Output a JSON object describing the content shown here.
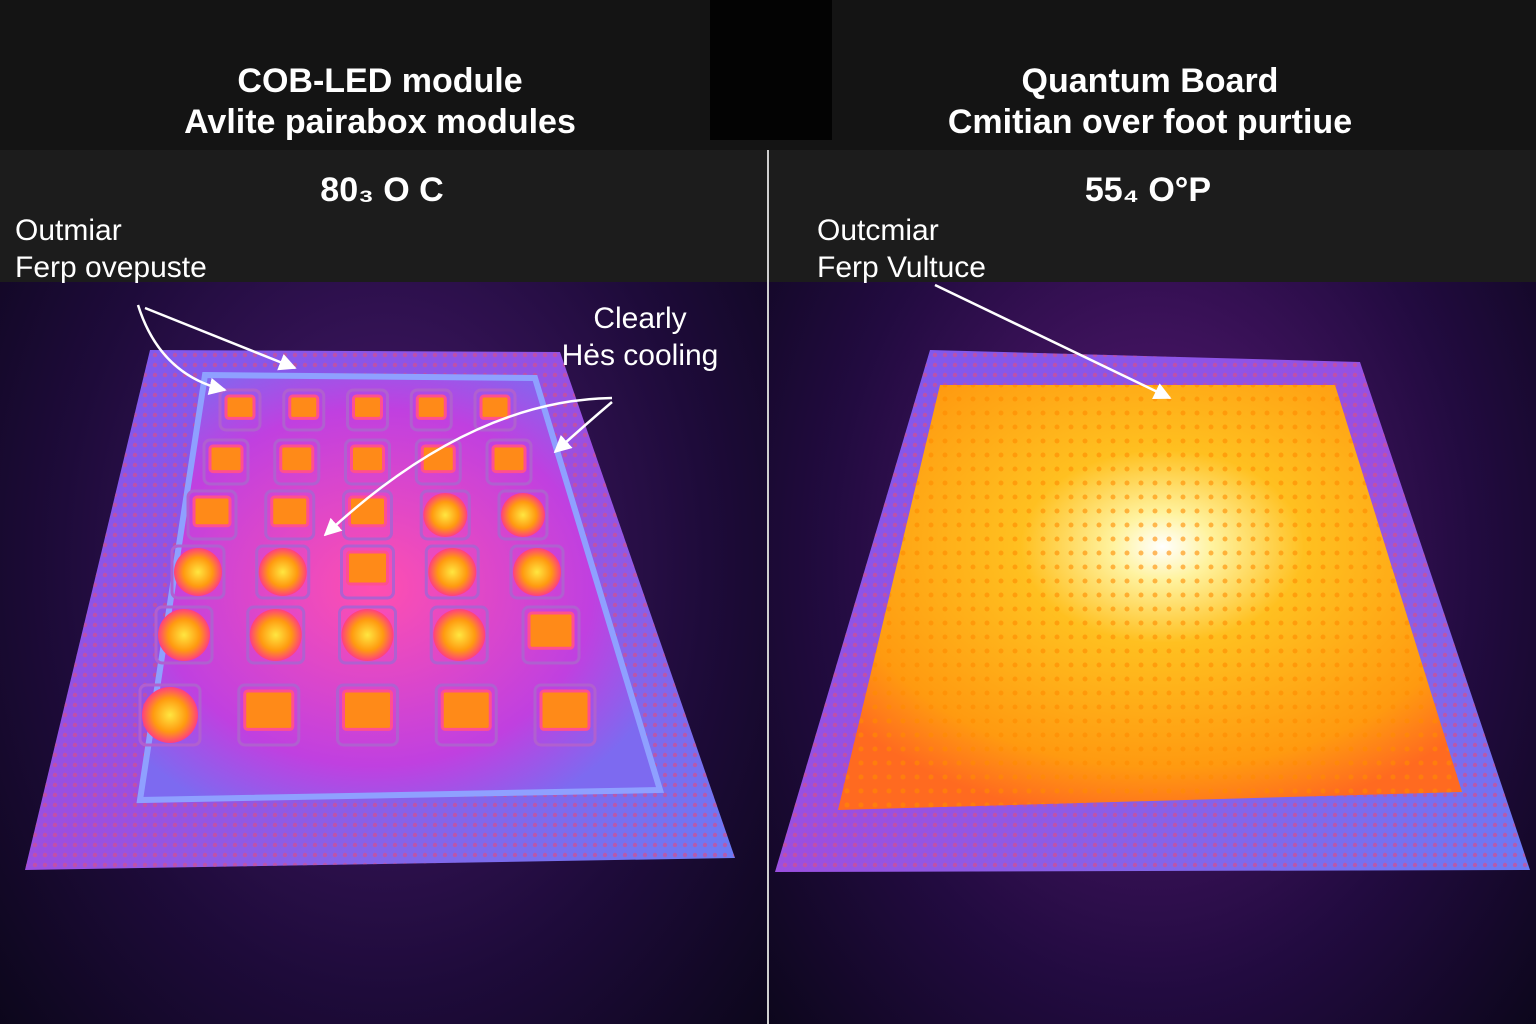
{
  "left_panel": {
    "title_lines": [
      "COB-LED module",
      "Avlite pairabox modules"
    ],
    "temperature": "80₃ O C",
    "annotations": [
      {
        "lines": [
          "Outmiar",
          "Ferp ovepuste"
        ]
      },
      {
        "lines": [
          "Clearly",
          "Hės cooling"
        ]
      }
    ]
  },
  "right_panel": {
    "title_lines": [
      "Quantum Board",
      "Cmitian over foot purtiue"
    ],
    "temperature": "55₄ O°P",
    "annotations": [
      {
        "lines": [
          "Outcmiar",
          "Ferp Vultuce"
        ]
      }
    ]
  }
}
